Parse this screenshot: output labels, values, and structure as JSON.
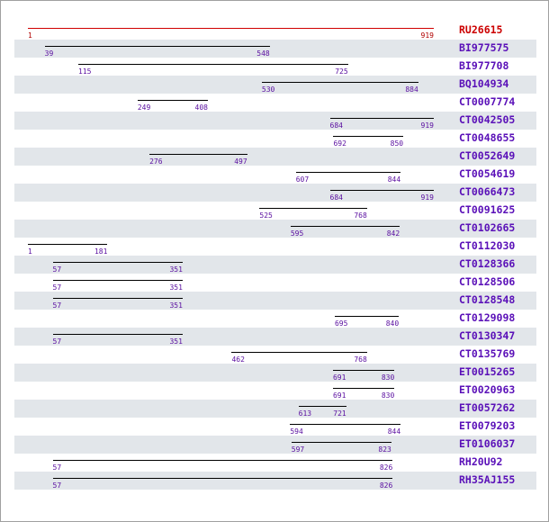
{
  "alignment": {
    "reference": {
      "id": "RU26615",
      "start": 1,
      "end": 919
    },
    "axis_max": 919,
    "colors": {
      "reference": "#cc0000",
      "label": "#5a10b8",
      "segment": "#000000",
      "row_shade": "#e2e6ea"
    },
    "rows": [
      {
        "id": "BI977575",
        "start": 39,
        "end": 548
      },
      {
        "id": "BI977708",
        "start": 115,
        "end": 725
      },
      {
        "id": "BQ104934",
        "start": 530,
        "end": 884
      },
      {
        "id": "CT0007774",
        "start": 249,
        "end": 408
      },
      {
        "id": "CT0042505",
        "start": 684,
        "end": 919
      },
      {
        "id": "CT0048655",
        "start": 692,
        "end": 850
      },
      {
        "id": "CT0052649",
        "start": 276,
        "end": 497
      },
      {
        "id": "CT0054619",
        "start": 607,
        "end": 844
      },
      {
        "id": "CT0066473",
        "start": 684,
        "end": 919
      },
      {
        "id": "CT0091625",
        "start": 525,
        "end": 768
      },
      {
        "id": "CT0102665",
        "start": 595,
        "end": 842
      },
      {
        "id": "CT0112030",
        "start": 1,
        "end": 181
      },
      {
        "id": "CT0128366",
        "start": 57,
        "end": 351
      },
      {
        "id": "CT0128506",
        "start": 57,
        "end": 351
      },
      {
        "id": "CT0128548",
        "start": 57,
        "end": 351
      },
      {
        "id": "CT0129098",
        "start": 695,
        "end": 840
      },
      {
        "id": "CT0130347",
        "start": 57,
        "end": 351
      },
      {
        "id": "CT0135769",
        "start": 462,
        "end": 768
      },
      {
        "id": "ET0015265",
        "start": 691,
        "end": 830
      },
      {
        "id": "ET0020963",
        "start": 691,
        "end": 830
      },
      {
        "id": "ET0057262",
        "start": 613,
        "end": 721
      },
      {
        "id": "ET0079203",
        "start": 594,
        "end": 844
      },
      {
        "id": "ET0106037",
        "start": 597,
        "end": 823
      },
      {
        "id": "RH20U92",
        "start": 57,
        "end": 826
      },
      {
        "id": "RH35AJ155",
        "start": 57,
        "end": 826
      }
    ]
  }
}
